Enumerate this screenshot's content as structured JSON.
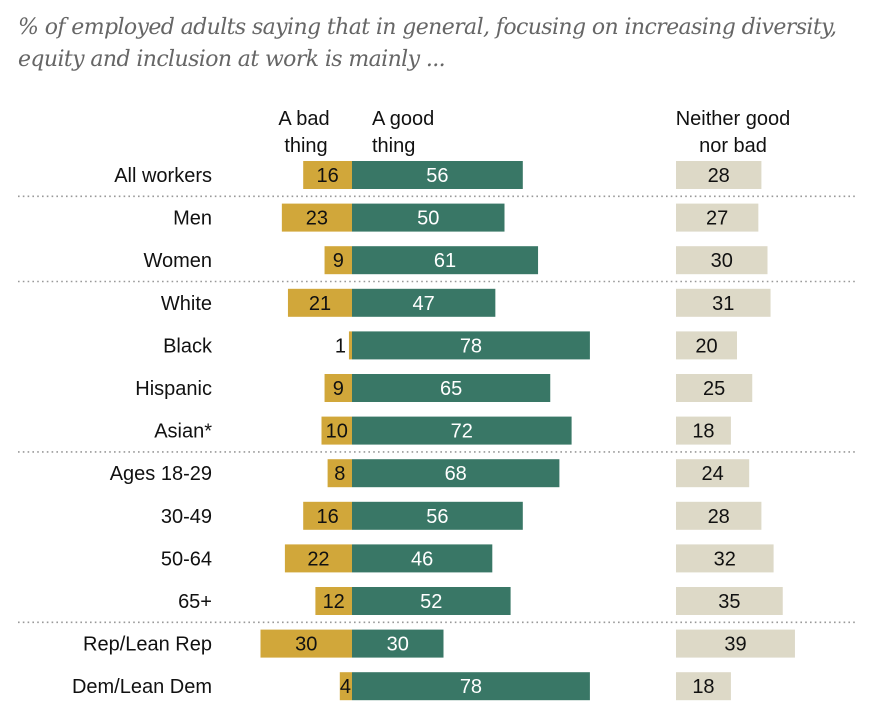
{
  "subtitle": "% of employed adults saying that in general, focusing on increasing diversity, equity and inclusion at work is mainly ...",
  "chart_data": {
    "type": "bar",
    "orientation": "horizontal",
    "stacked": "diverging",
    "title": "% of employed adults saying that in general, focusing on increasing diversity, equity and inclusion at work is mainly ...",
    "xlabel": "",
    "ylabel": "",
    "xlim": [
      0,
      100
    ],
    "grid": false,
    "legend": "column headers at top",
    "column_headers": {
      "bad": [
        "A bad",
        "thing"
      ],
      "good": [
        "A good",
        "thing"
      ],
      "neither": [
        "Neither good",
        "nor bad"
      ]
    },
    "colors": {
      "bad": "#D1A73A",
      "good": "#397766",
      "neither": "#DDD9C7",
      "bad_text": "#111111",
      "good_text": "#ffffff",
      "neither_text": "#111111",
      "separator": "#999999"
    },
    "categories": [
      "All workers",
      "Men",
      "Women",
      "White",
      "Black",
      "Hispanic",
      "Asian*",
      "Ages 18-29",
      "30-49",
      "50-64",
      "65+",
      "Rep/Lean Rep",
      "Dem/Lean Dem"
    ],
    "group_breaks_after": [
      0,
      2,
      6,
      10
    ],
    "series": [
      {
        "name": "A bad thing",
        "key": "bad",
        "values": [
          16,
          23,
          9,
          21,
          1,
          9,
          10,
          8,
          16,
          22,
          12,
          30,
          4
        ]
      },
      {
        "name": "A good thing",
        "key": "good",
        "values": [
          56,
          50,
          61,
          47,
          78,
          65,
          72,
          68,
          56,
          46,
          52,
          30,
          78
        ]
      },
      {
        "name": "Neither good nor bad",
        "key": "neither",
        "values": [
          28,
          27,
          30,
          31,
          20,
          25,
          18,
          24,
          28,
          32,
          35,
          39,
          18
        ]
      }
    ]
  }
}
